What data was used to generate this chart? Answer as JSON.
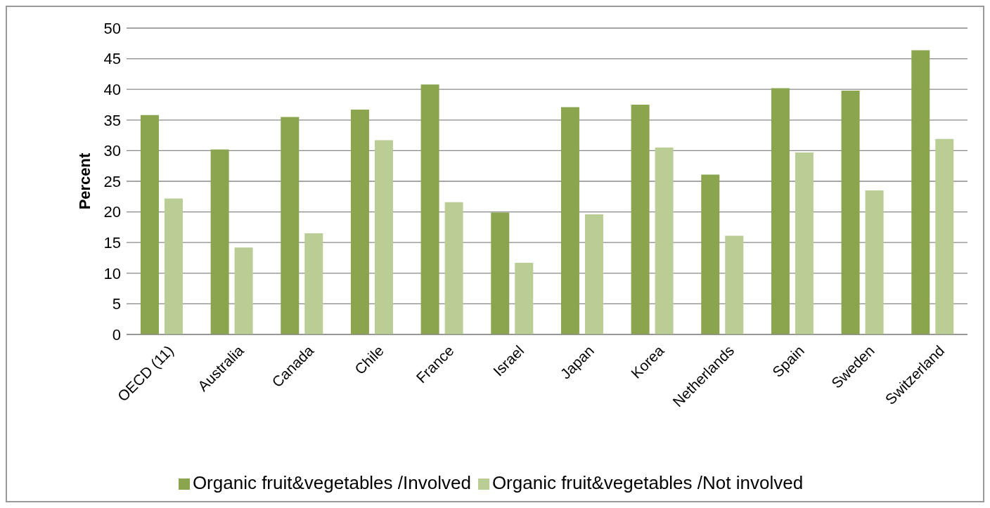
{
  "chart_data": {
    "type": "bar",
    "ylabel": "Percent",
    "categories": [
      "OECD (11)",
      "Australia",
      "Canada",
      "Chile",
      "France",
      "Israel",
      "Japan",
      "Korea",
      "Netherlands",
      "Spain",
      "Sweden",
      "Switzerland"
    ],
    "series": [
      {
        "name": "Organic fruit&vegetables /Involved",
        "color": "#8aa54e",
        "values": [
          35.8,
          30.2,
          35.5,
          36.7,
          40.8,
          19.9,
          37.1,
          37.5,
          26.1,
          40.2,
          39.8,
          46.4
        ]
      },
      {
        "name": "Organic fruit&vegetables /Not involved",
        "color": "#b9cd95",
        "values": [
          22.2,
          14.2,
          16.5,
          31.7,
          21.6,
          11.7,
          19.6,
          30.5,
          16.1,
          29.7,
          23.5,
          31.9
        ]
      }
    ],
    "ylim": [
      0,
      50
    ],
    "yticks": [
      0,
      5,
      10,
      15,
      20,
      25,
      30,
      35,
      40,
      45,
      50
    ],
    "grid": "y",
    "legend": "bottom"
  }
}
